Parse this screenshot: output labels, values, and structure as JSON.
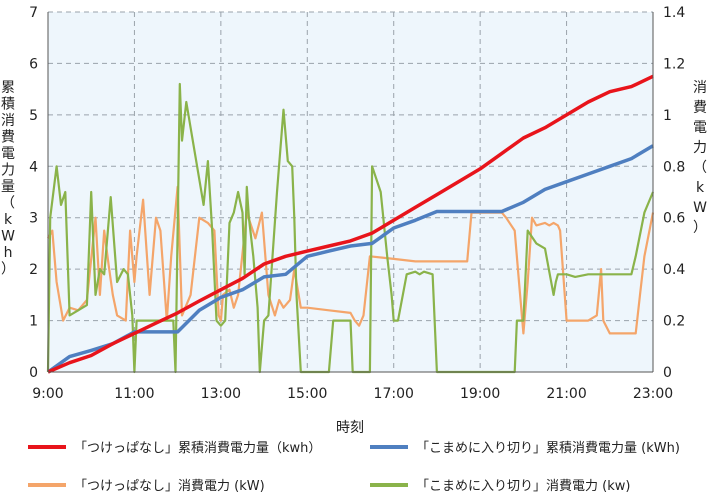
{
  "chart_data": {
    "type": "line",
    "title": "",
    "xlabel": "時刻",
    "ylabel_left": "累積消費電力量（kWh）",
    "ylabel_right": "消費電力（kW）",
    "x_ticks": [
      "9:00",
      "11:00",
      "13:00",
      "15:00",
      "17:00",
      "19:00",
      "21:00",
      "23:00"
    ],
    "x_range_hours": [
      9,
      23
    ],
    "ylim_left": [
      0,
      7
    ],
    "ylim_right": [
      0,
      1.4
    ],
    "y_ticks_left": [
      "0",
      "1",
      "2",
      "3",
      "4",
      "5",
      "6",
      "7"
    ],
    "y_ticks_right": [
      "0",
      "0.2",
      "0.4",
      "0.6",
      "0.8",
      "1",
      "1.2",
      "1.4"
    ],
    "grid": "vertical dashed at each tick, horizontal dashed at left ticks",
    "legend_position": "bottom",
    "series": [
      {
        "name": "「つけっぱなし」累積消費電力量（kwh）",
        "axis": "left",
        "color": "#e8141b",
        "x": [
          9.0,
          9.5,
          10.0,
          10.5,
          11.0,
          11.5,
          12.0,
          12.5,
          13.0,
          13.5,
          14.0,
          14.5,
          15.0,
          15.5,
          16.0,
          16.5,
          17.0,
          17.5,
          18.0,
          18.5,
          19.0,
          19.5,
          20.0,
          20.5,
          21.0,
          21.5,
          22.0,
          22.5,
          23.0
        ],
        "y": [
          0.0,
          0.18,
          0.32,
          0.55,
          0.75,
          0.95,
          1.15,
          1.38,
          1.6,
          1.82,
          2.1,
          2.25,
          2.35,
          2.45,
          2.55,
          2.7,
          2.95,
          3.2,
          3.45,
          3.7,
          3.95,
          4.25,
          4.55,
          4.75,
          5.0,
          5.25,
          5.45,
          5.55,
          5.75
        ]
      },
      {
        "name": "「こまめに入り切り」累積消費電力量 (kWh)",
        "axis": "left",
        "color": "#4f7fc0",
        "x": [
          9.0,
          9.5,
          10.0,
          10.5,
          11.0,
          11.5,
          12.0,
          12.5,
          13.0,
          13.5,
          14.0,
          14.5,
          15.0,
          15.5,
          16.0,
          16.5,
          17.0,
          17.5,
          18.0,
          18.5,
          19.0,
          19.5,
          20.0,
          20.5,
          21.0,
          21.5,
          22.0,
          22.5,
          23.0
        ],
        "y": [
          0.0,
          0.3,
          0.42,
          0.55,
          0.78,
          0.78,
          0.78,
          1.2,
          1.45,
          1.6,
          1.85,
          1.9,
          2.25,
          2.35,
          2.45,
          2.5,
          2.8,
          2.95,
          3.12,
          3.12,
          3.12,
          3.12,
          3.3,
          3.55,
          3.7,
          3.85,
          4.0,
          4.15,
          4.4
        ]
      },
      {
        "name": "「つけっぱなし」消費電力 (kW)",
        "axis": "right",
        "color": "#f4a56a",
        "x": [
          9.0,
          9.1,
          9.2,
          9.35,
          9.5,
          9.7,
          9.9,
          10.1,
          10.2,
          10.3,
          10.4,
          10.5,
          10.6,
          10.8,
          10.9,
          11.0,
          11.05,
          11.2,
          11.35,
          11.5,
          11.6,
          11.75,
          11.85,
          12.0,
          12.1,
          12.3,
          12.5,
          12.7,
          12.85,
          12.95,
          13.0,
          13.05,
          13.2,
          13.3,
          13.4,
          13.6,
          13.8,
          13.95,
          14.1,
          14.25,
          14.35,
          14.45,
          14.6,
          14.7,
          14.85,
          15.0,
          15.5,
          16.0,
          16.1,
          16.2,
          16.3,
          16.45,
          17.0,
          17.5,
          18.0,
          18.5,
          18.7,
          18.8,
          19.0,
          19.5,
          19.6,
          19.8,
          19.9,
          20.0,
          20.1,
          20.2,
          20.3,
          20.5,
          20.6,
          20.7,
          20.8,
          20.85,
          21.0,
          21.5,
          21.7,
          21.8,
          21.85,
          22.0,
          22.2,
          22.5,
          22.6,
          22.7,
          22.8,
          23.0
        ],
        "y": [
          0.52,
          0.55,
          0.35,
          0.2,
          0.25,
          0.24,
          0.28,
          0.6,
          0.3,
          0.55,
          0.42,
          0.3,
          0.22,
          0.2,
          0.55,
          0.35,
          0.45,
          0.67,
          0.3,
          0.6,
          0.55,
          0.2,
          0.45,
          0.72,
          0.22,
          0.3,
          0.6,
          0.58,
          0.55,
          0.22,
          0.2,
          0.3,
          0.32,
          0.25,
          0.3,
          0.62,
          0.52,
          0.62,
          0.3,
          0.22,
          0.28,
          0.25,
          0.28,
          0.4,
          0.25,
          0.25,
          0.24,
          0.23,
          0.2,
          0.18,
          0.22,
          0.45,
          0.44,
          0.43,
          0.43,
          0.43,
          0.43,
          0.62,
          0.62,
          0.62,
          0.6,
          0.55,
          0.35,
          0.15,
          0.35,
          0.6,
          0.57,
          0.58,
          0.57,
          0.58,
          0.57,
          0.55,
          0.2,
          0.2,
          0.22,
          0.4,
          0.2,
          0.15,
          0.15,
          0.15,
          0.15,
          0.3,
          0.45,
          0.62
        ]
      },
      {
        "name": "「こまめに入り切り」消費電力 (kw)",
        "axis": "right",
        "color": "#8ab34a",
        "x": [
          9.0,
          9.05,
          9.2,
          9.3,
          9.4,
          9.5,
          9.7,
          9.9,
          10.0,
          10.1,
          10.2,
          10.3,
          10.45,
          10.6,
          10.75,
          10.85,
          10.95,
          11.0,
          11.05,
          11.1,
          11.5,
          11.9,
          11.95,
          12.05,
          12.1,
          12.2,
          12.3,
          12.45,
          12.6,
          12.7,
          12.8,
          12.9,
          13.0,
          13.1,
          13.2,
          13.3,
          13.4,
          13.5,
          13.55,
          13.6,
          13.65,
          13.75,
          13.85,
          13.9,
          14.0,
          14.1,
          14.3,
          14.45,
          14.55,
          14.65,
          14.7,
          14.75,
          14.85,
          15.0,
          15.5,
          15.6,
          16.0,
          16.05,
          16.45,
          16.5,
          16.7,
          16.85,
          16.95,
          17.0,
          17.1,
          17.3,
          17.5,
          17.6,
          17.7,
          17.9,
          18.0,
          18.5,
          18.55,
          18.6,
          19.0,
          19.2,
          19.5,
          19.8,
          19.85,
          20.0,
          20.1,
          20.3,
          20.5,
          20.7,
          20.75,
          20.8,
          21.0,
          21.2,
          21.5,
          22.0,
          22.4,
          22.5,
          22.6,
          22.8,
          23.0
        ],
        "y": [
          0.0,
          0.6,
          0.8,
          0.65,
          0.7,
          0.22,
          0.24,
          0.26,
          0.7,
          0.3,
          0.4,
          0.38,
          0.68,
          0.35,
          0.4,
          0.38,
          0.22,
          0.0,
          0.2,
          0.2,
          0.2,
          0.2,
          0.0,
          1.12,
          0.9,
          1.05,
          0.95,
          0.8,
          0.65,
          0.82,
          0.55,
          0.2,
          0.18,
          0.2,
          0.58,
          0.62,
          0.7,
          0.62,
          0.38,
          0.72,
          0.6,
          0.45,
          0.25,
          0.0,
          0.2,
          0.22,
          0.7,
          1.02,
          0.82,
          0.8,
          0.6,
          0.3,
          0.0,
          0.0,
          0.0,
          0.2,
          0.2,
          0.0,
          0.0,
          0.8,
          0.7,
          0.45,
          0.3,
          0.2,
          0.2,
          0.38,
          0.39,
          0.38,
          0.39,
          0.38,
          0.0,
          0.0,
          0.0,
          0.0,
          0.0,
          0.0,
          0.0,
          0.0,
          0.2,
          0.2,
          0.55,
          0.5,
          0.48,
          0.3,
          0.35,
          0.38,
          0.38,
          0.37,
          0.38,
          0.38,
          0.38,
          0.38,
          0.45,
          0.62,
          0.7
        ]
      }
    ]
  }
}
